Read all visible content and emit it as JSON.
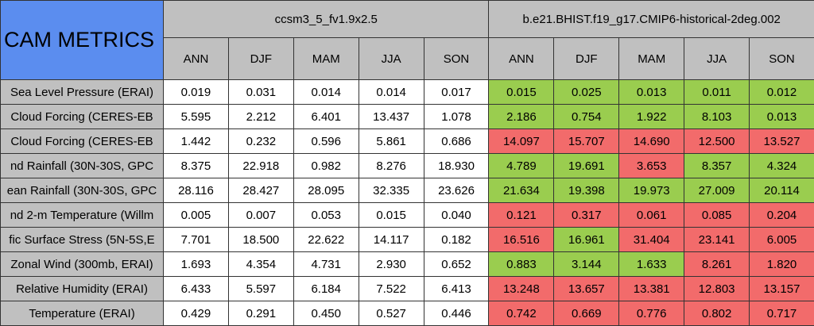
{
  "table": {
    "title": "CAM METRICS",
    "groups": [
      {
        "name": "ccsm3_5_fv1.9x2.5",
        "columns": [
          "ANN",
          "DJF",
          "MAM",
          "JJA",
          "SON"
        ]
      },
      {
        "name": "b.e21.BHIST.f19_g17.CMIP6-historical-2deg.002",
        "columns": [
          "ANN",
          "DJF",
          "MAM",
          "JJA",
          "SON"
        ]
      }
    ],
    "colors": {
      "header": "#c0c0c0",
      "title": "#5b8def",
      "good": "#9acd4f",
      "bad": "#f26b6b",
      "plain": "#ffffff"
    },
    "rows": [
      {
        "label": "Sea Level Pressure (ERAI)",
        "values": [
          [
            "0.019",
            "0.031",
            "0.014",
            "0.014",
            "0.017"
          ],
          [
            "0.015",
            "0.025",
            "0.013",
            "0.011",
            "0.012"
          ]
        ],
        "status": [
          "good",
          "good",
          "good",
          "good",
          "good"
        ]
      },
      {
        "label": "Cloud Forcing (CERES-EB",
        "values": [
          [
            "5.595",
            "2.212",
            "6.401",
            "13.437",
            "1.078"
          ],
          [
            "2.186",
            "0.754",
            "1.922",
            "8.103",
            "0.013"
          ]
        ],
        "status": [
          "good",
          "good",
          "good",
          "good",
          "good"
        ]
      },
      {
        "label": "Cloud Forcing (CERES-EB",
        "values": [
          [
            "1.442",
            "0.232",
            "0.596",
            "5.861",
            "0.686"
          ],
          [
            "14.097",
            "15.707",
            "14.690",
            "12.500",
            "13.527"
          ]
        ],
        "status": [
          "bad",
          "bad",
          "bad",
          "bad",
          "bad"
        ]
      },
      {
        "label": "nd Rainfall (30N-30S, GPC",
        "values": [
          [
            "8.375",
            "22.918",
            "0.982",
            "8.276",
            "18.930"
          ],
          [
            "4.789",
            "19.691",
            "3.653",
            "8.357",
            "4.324"
          ]
        ],
        "status": [
          "good",
          "good",
          "bad",
          "good",
          "good"
        ]
      },
      {
        "label": "ean Rainfall (30N-30S, GPC",
        "values": [
          [
            "28.116",
            "28.427",
            "28.095",
            "32.335",
            "23.626"
          ],
          [
            "21.634",
            "19.398",
            "19.973",
            "27.009",
            "20.114"
          ]
        ],
        "status": [
          "good",
          "good",
          "good",
          "good",
          "good"
        ]
      },
      {
        "label": "nd 2-m Temperature (Willm",
        "values": [
          [
            "0.005",
            "0.007",
            "0.053",
            "0.015",
            "0.040"
          ],
          [
            "0.121",
            "0.317",
            "0.061",
            "0.085",
            "0.204"
          ]
        ],
        "status": [
          "bad",
          "bad",
          "bad",
          "bad",
          "bad"
        ]
      },
      {
        "label": "fic Surface Stress (5N-5S,E",
        "values": [
          [
            "7.701",
            "18.500",
            "22.622",
            "14.117",
            "0.182"
          ],
          [
            "16.516",
            "16.961",
            "31.404",
            "23.141",
            "6.005"
          ]
        ],
        "status": [
          "bad",
          "good",
          "bad",
          "bad",
          "bad"
        ]
      },
      {
        "label": "Zonal Wind (300mb, ERAI)",
        "values": [
          [
            "1.693",
            "4.354",
            "4.731",
            "2.930",
            "0.652"
          ],
          [
            "0.883",
            "3.144",
            "1.633",
            "8.261",
            "1.820"
          ]
        ],
        "status": [
          "good",
          "good",
          "good",
          "bad",
          "bad"
        ]
      },
      {
        "label": "Relative Humidity (ERAI)",
        "values": [
          [
            "6.433",
            "5.597",
            "6.184",
            "7.522",
            "6.413"
          ],
          [
            "13.248",
            "13.657",
            "13.381",
            "12.803",
            "13.157"
          ]
        ],
        "status": [
          "bad",
          "bad",
          "bad",
          "bad",
          "bad"
        ]
      },
      {
        "label": "Temperature (ERAI)",
        "values": [
          [
            "0.429",
            "0.291",
            "0.450",
            "0.527",
            "0.446"
          ],
          [
            "0.742",
            "0.669",
            "0.776",
            "0.802",
            "0.717"
          ]
        ],
        "status": [
          "bad",
          "bad",
          "bad",
          "bad",
          "bad"
        ]
      }
    ]
  }
}
